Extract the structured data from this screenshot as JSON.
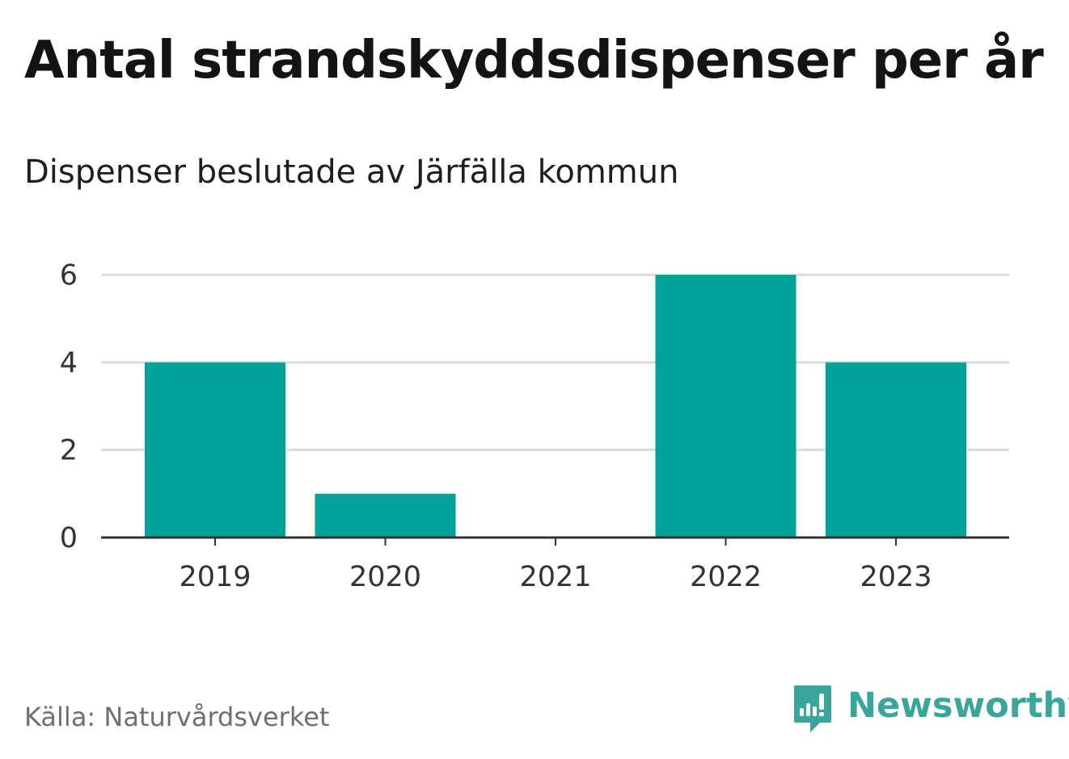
{
  "colors": {
    "bar": "#00a39a",
    "grid": "#dcdcdc",
    "axis": "#333333",
    "brand": "#3aa59a"
  },
  "chart_data": {
    "type": "bar",
    "title": "Antal strandskyddsdispenser per år",
    "subtitle": "Dispenser beslutade av Järfälla kommun",
    "categories": [
      "2019",
      "2020",
      "2021",
      "2022",
      "2023"
    ],
    "values": [
      4,
      1,
      0,
      6,
      4
    ],
    "yticks": [
      0,
      2,
      4,
      6
    ],
    "ylim": [
      0,
      6
    ],
    "xlabel": "",
    "ylabel": "",
    "grid": true
  },
  "footer": {
    "source": "Källa: Naturvårdsverket",
    "brand_name": "Newsworthy",
    "brand_icon": "newsworthy-logo-icon"
  }
}
